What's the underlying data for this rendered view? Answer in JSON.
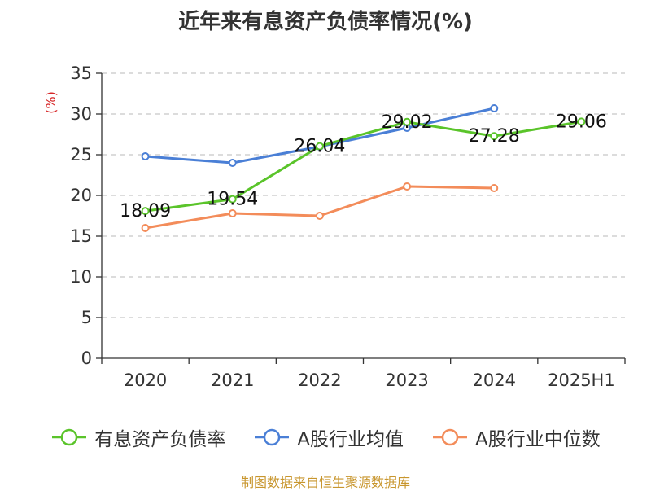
{
  "title": "近年来有息资产负债率情况(%)",
  "source": "制图数据来自恒生聚源数据库",
  "colors": {
    "axis": "#333333",
    "grid": "#c8c8c8",
    "unit": "#d62728"
  },
  "chart_data": {
    "type": "line",
    "categories": [
      "2020",
      "2021",
      "2022",
      "2023",
      "2024",
      "2025H1"
    ],
    "ylim": [
      0,
      35
    ],
    "yticks": [
      0,
      5,
      10,
      15,
      20,
      25,
      30,
      35
    ],
    "ylabel": "(%)",
    "xlabel": "",
    "grid": true,
    "legend_position": "bottom",
    "series": [
      {
        "name": "有息资产负债率",
        "color": "#5ac42a",
        "values": [
          18.09,
          19.54,
          26.04,
          29.02,
          27.28,
          29.06
        ],
        "labels": [
          "18.09",
          "19.54",
          "26.04",
          "29.02",
          "27.28",
          "29.06"
        ]
      },
      {
        "name": "A股行业均值",
        "color": "#4a7fd6",
        "values": [
          24.8,
          24.0,
          26.0,
          28.3,
          30.7,
          null
        ]
      },
      {
        "name": "A股行业中位数",
        "color": "#f38c5a",
        "values": [
          16.0,
          17.8,
          17.5,
          21.1,
          20.9,
          null
        ]
      }
    ]
  }
}
